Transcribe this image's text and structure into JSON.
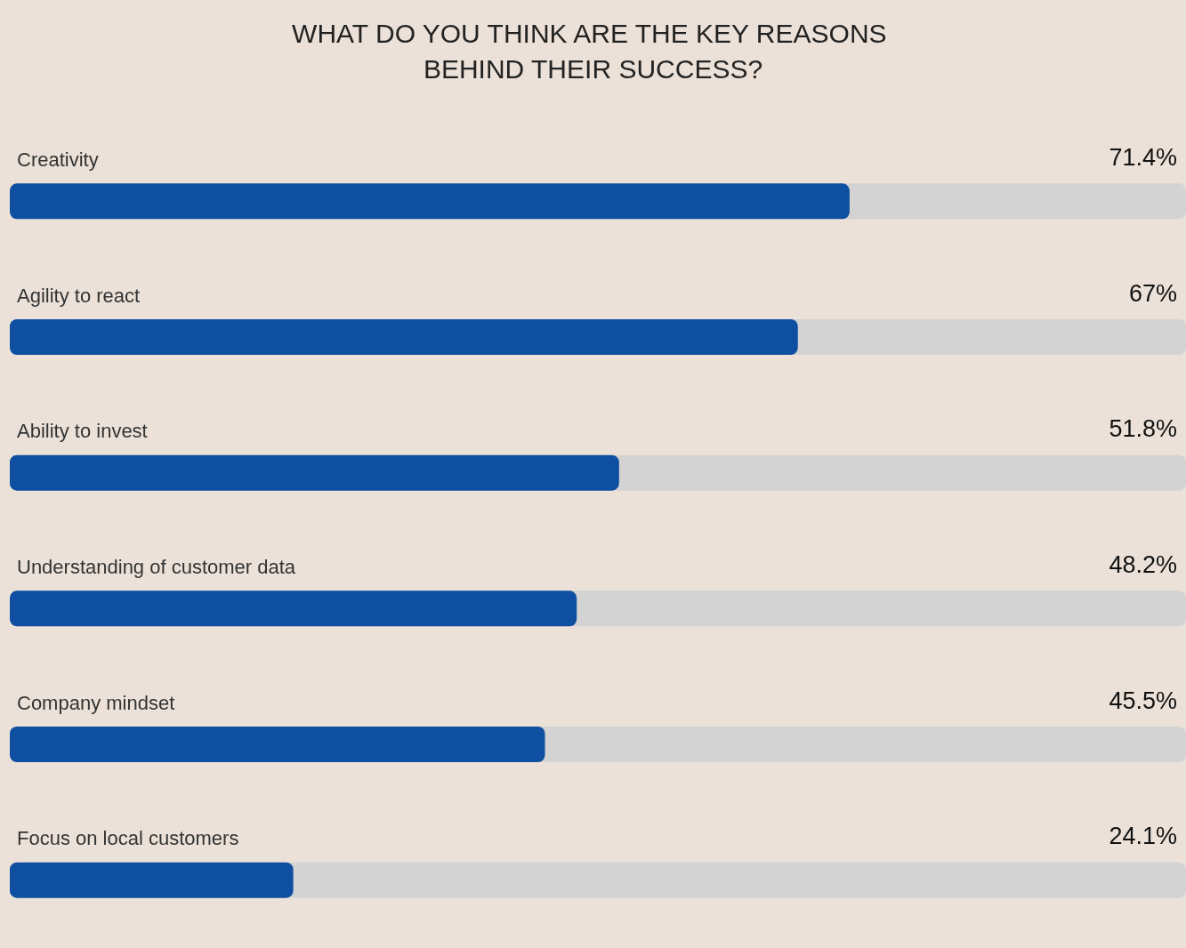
{
  "chart_data": {
    "type": "bar",
    "orientation": "horizontal",
    "title": "WHAT DO YOU THINK ARE THE KEY REASONS BEHIND THEIR SUCCESS?",
    "categories": [
      "Creativity",
      "Agility to react",
      "Ability to invest",
      "Understanding of customer data",
      "Company mindset",
      "Focus on local customers"
    ],
    "values": [
      71.4,
      67,
      51.8,
      48.2,
      45.5,
      24.1
    ],
    "value_labels": [
      "71.4%",
      "67%",
      "51.8%",
      "48.2%",
      "45.5%",
      "24.1%"
    ],
    "color": "#0e4fa1",
    "xlim": [
      0,
      100
    ],
    "tick_labels": "y"
  }
}
